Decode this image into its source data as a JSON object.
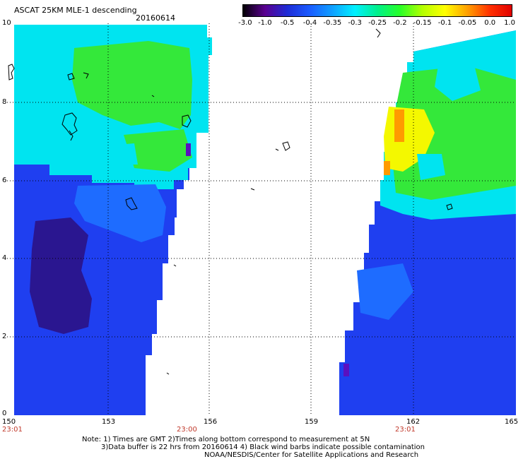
{
  "header": {
    "title": "ASCAT 25KM MLE-1 descending",
    "date": "20160614"
  },
  "colorbar": {
    "labels": [
      "-3.0",
      "-1.0",
      "-0.5",
      "-0.4",
      "-0.35",
      "-0.3",
      "-0.25",
      "-0.2",
      "-0.15",
      "-0.1",
      "-0.05",
      "0.0",
      "1.0"
    ],
    "stops": [
      "#000000",
      "#5a0090",
      "#1e2cd6",
      "#1a5cff",
      "#0fa0ff",
      "#00f0ff",
      "#00f08c",
      "#28ff28",
      "#b4ff00",
      "#ffff00",
      "#ffa000",
      "#ff3000",
      "#e00000"
    ]
  },
  "axes": {
    "y_ticks": [
      "10",
      "8",
      "6",
      "4",
      "2",
      "0"
    ],
    "x_ticks": [
      "150",
      "153",
      "156",
      "159",
      "162",
      "165"
    ],
    "times": [
      "23:01",
      "23:00",
      "23:01"
    ]
  },
  "colors": {
    "deep": "#2a1690",
    "blue": "#1f3ff0",
    "mid_blue": "#1e6cff",
    "cyan": "#00e4f0",
    "green": "#34e83a",
    "yellow": "#f4f800",
    "orange": "#ff9a00",
    "red_orange": "#ff5a00",
    "purple": "#5a10c0"
  },
  "notes": {
    "line1": "Note: 1) Times are GMT 2)Times along bottom correspond to measurement at 5N",
    "line2": "3)Data buffer is 22 hrs from 20160614 4) Black wind barbs indicate possible contamination",
    "line3": "NOAA/NESDIS/Center for Satellite Applications and Research"
  }
}
